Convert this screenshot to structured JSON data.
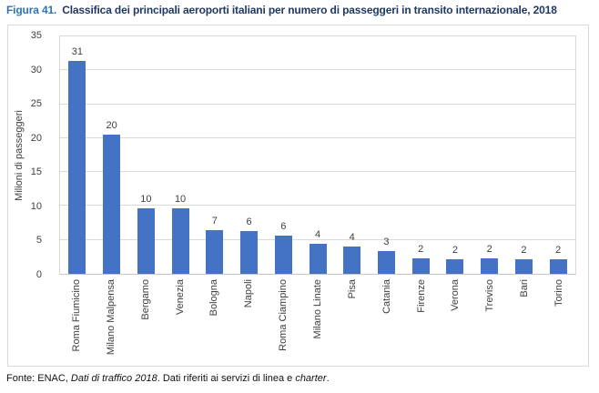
{
  "figure": {
    "label": "Figura 41.",
    "title": "Classifica dei principali aeroporti italiani per numero di passeggeri in transito internazionale, 2018"
  },
  "chart_data": {
    "type": "bar",
    "title": "Classifica dei principali aeroporti italiani per numero di passeggeri in transito internazionale, 2018",
    "categories": [
      "Roma Fiumicino",
      "Milano Malpensa",
      "Bergamo",
      "Venezia",
      "Bologna",
      "Napoli",
      "Roma Ciampino",
      "Milano Linate",
      "Pisa",
      "Catania",
      "Firenze",
      "Verona",
      "Treviso",
      "Bari",
      "Torino"
    ],
    "values": [
      31,
      20,
      10,
      10,
      7,
      6,
      6,
      4,
      4,
      3,
      2,
      2,
      2,
      2,
      2
    ],
    "values_precise": [
      31.4,
      20.5,
      9.7,
      9.7,
      6.5,
      6.3,
      5.6,
      4.4,
      4.0,
      3.4,
      2.3,
      2.2,
      2.3,
      2.2,
      2.1
    ],
    "data_labels": [
      "31",
      "20",
      "10",
      "10",
      "7",
      "6",
      "6",
      "4",
      "4",
      "3",
      "2",
      "2",
      "2",
      "2",
      "2"
    ],
    "xlabel": "",
    "ylabel": "Milioni di passeggeri",
    "ylim": [
      0,
      35
    ],
    "yticks": [
      0,
      5,
      10,
      15,
      20,
      25,
      30,
      35
    ],
    "grid": "horizontal",
    "legend": "none",
    "bar_color": "#4472C4"
  },
  "footer": {
    "segments": [
      {
        "text": "Fonte: ENAC, ",
        "italic": false
      },
      {
        "text": "Dati di traffico 2018",
        "italic": true
      },
      {
        "text": ". Dati riferiti ai servizi di linea e ",
        "italic": false
      },
      {
        "text": "charter",
        "italic": true
      },
      {
        "text": ".",
        "italic": false
      }
    ]
  },
  "colors": {
    "bar": "#4472C4",
    "gridline": "#D9D9D9",
    "axis_text": "#404040",
    "figure_label": "#2E74B5",
    "figure_title": "#1F3864"
  }
}
